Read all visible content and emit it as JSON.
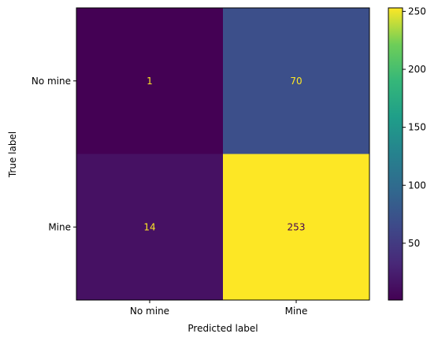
{
  "chart_data": {
    "type": "heatmap",
    "title": "",
    "xlabel": "Predicted label",
    "ylabel": "True label",
    "x_categories": [
      "No mine",
      "Mine"
    ],
    "y_categories": [
      "No mine",
      "Mine"
    ],
    "values": [
      [
        1,
        70
      ],
      [
        14,
        253
      ]
    ],
    "colormap": "viridis",
    "colorbar": {
      "min": 1,
      "max": 253,
      "ticks": [
        50,
        100,
        150,
        200,
        250
      ]
    },
    "text_colors": {
      "on_dark": "#fde725",
      "on_light": "#440154"
    }
  }
}
